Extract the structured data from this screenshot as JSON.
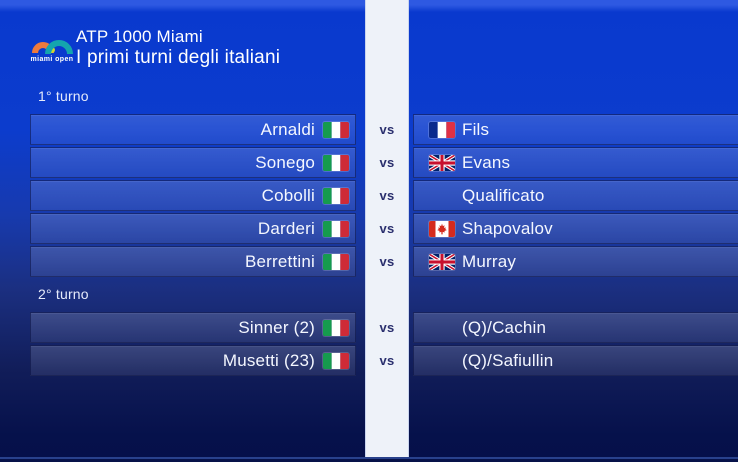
{
  "header": {
    "title": "ATP 1000 Miami",
    "subtitle": "I primi turni degli italiani",
    "logo_text": "miami open"
  },
  "vs_label": "vs",
  "sections": [
    {
      "label": "1° turno",
      "matches": [
        {
          "home": "Arnaldi",
          "home_flag": "it",
          "away": "Fils",
          "away_flag": "fr"
        },
        {
          "home": "Sonego",
          "home_flag": "it",
          "away": "Evans",
          "away_flag": "gb"
        },
        {
          "home": "Cobolli",
          "home_flag": "it",
          "away": "Qualificato",
          "away_flag": null
        },
        {
          "home": "Darderi",
          "home_flag": "it",
          "away": "Shapovalov",
          "away_flag": "ca"
        },
        {
          "home": "Berrettini",
          "home_flag": "it",
          "away": "Murray",
          "away_flag": "gb"
        }
      ]
    },
    {
      "label": "2° turno",
      "matches": [
        {
          "home": "Sinner (2)",
          "home_flag": "it",
          "away": "(Q)/Cachin",
          "away_flag": null
        },
        {
          "home": "Musetti (23)",
          "home_flag": "it",
          "away": "(Q)/Safiullin",
          "away_flag": null
        }
      ]
    }
  ],
  "colors": {
    "background_top": "#0939ce",
    "background_bottom": "#05104a",
    "divider": "#eef2f9",
    "vs_text": "#2a2f6e",
    "logo_orange": "#ee7a3d",
    "logo_teal": "#14a5ae",
    "logo_ball": "#c9d534"
  }
}
